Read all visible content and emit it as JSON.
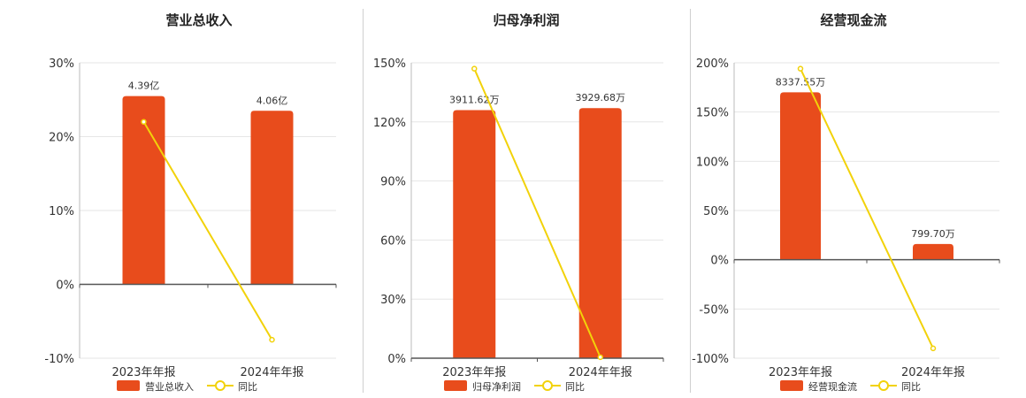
{
  "colors": {
    "bar": "#e84c1c",
    "line": "#f2d20a",
    "axis": "#555555",
    "grid": "#e6e6e6"
  },
  "chart_data": [
    {
      "type": "bar+line",
      "title": "营业总收入",
      "categories": [
        "2023年年报",
        "2024年年报"
      ],
      "bar_series": {
        "name": "营业总收入",
        "values": [
          25.5,
          23.5
        ],
        "labels": [
          "4.39亿",
          "4.06亿"
        ]
      },
      "line_series": {
        "name": "同比",
        "values": [
          22.0,
          -7.5
        ]
      },
      "ylim": [
        -10,
        30
      ],
      "yticks": [
        "30%",
        "20%",
        "10%",
        "0%",
        "-10%"
      ],
      "ytick_values": [
        30,
        20,
        10,
        0,
        -10
      ],
      "grid": true,
      "legend": "bottom"
    },
    {
      "type": "bar+line",
      "title": "归母净利润",
      "categories": [
        "2023年年报",
        "2024年年报"
      ],
      "bar_series": {
        "name": "归母净利润",
        "values": [
          126,
          127
        ],
        "labels": [
          "3911.62万",
          "3929.68万"
        ]
      },
      "line_series": {
        "name": "同比",
        "values": [
          147,
          0.5
        ]
      },
      "ylim": [
        0,
        150
      ],
      "yticks": [
        "150%",
        "120%",
        "90%",
        "60%",
        "30%",
        "0%"
      ],
      "ytick_values": [
        150,
        120,
        90,
        60,
        30,
        0
      ],
      "grid": true,
      "legend": "bottom"
    },
    {
      "type": "bar+line",
      "title": "经营现金流",
      "categories": [
        "2023年年报",
        "2024年年报"
      ],
      "bar_series": {
        "name": "经营现金流",
        "values": [
          170,
          16
        ],
        "labels": [
          "8337.55万",
          "799.70万"
        ]
      },
      "line_series": {
        "name": "同比",
        "values": [
          194,
          -90
        ]
      },
      "ylim": [
        -100,
        200
      ],
      "yticks": [
        "200%",
        "150%",
        "100%",
        "50%",
        "0%",
        "-50%",
        "-100%"
      ],
      "ytick_values": [
        200,
        150,
        100,
        50,
        0,
        -50,
        -100
      ],
      "grid": true,
      "legend": "bottom"
    }
  ]
}
